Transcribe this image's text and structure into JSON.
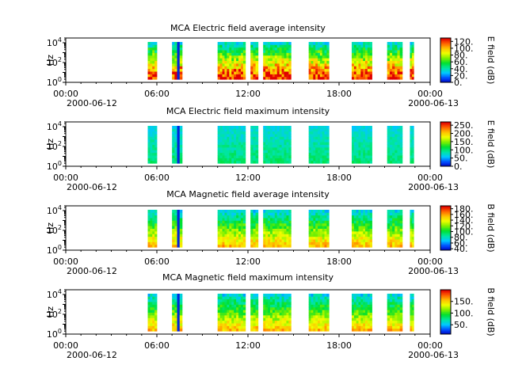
{
  "chart_data": [
    {
      "type": "heatmap",
      "title": "MCA  Electric field average intensity",
      "ylabel": "Hz",
      "y_scale": "log",
      "ylim": [
        1,
        30000
      ],
      "y_ticks": [
        {
          "value": 1,
          "base": "10",
          "exp": "0"
        },
        {
          "value": 100,
          "base": "10",
          "exp": "2"
        },
        {
          "value": 10000,
          "base": "10",
          "exp": "4"
        }
      ],
      "x_range": [
        "2000-06-12 00:00",
        "2000-06-13 00:00"
      ],
      "x_ticks": [
        "00:00",
        "06:00",
        "12:00",
        "18:00",
        "00:00"
      ],
      "x_dates": {
        "first": "2000-06-12",
        "last": "2000-06-13"
      },
      "colorbar": {
        "label": "E field (dB)",
        "min": 0,
        "max": 130,
        "ticks": [
          "0.",
          "20.",
          "40.",
          "60.",
          "80.",
          "100.",
          "120."
        ],
        "tick_values": [
          0,
          20,
          40,
          60,
          80,
          100,
          120
        ]
      },
      "hot_bias": 0.35
    },
    {
      "type": "heatmap",
      "title": "MCA  Electric field maximum intensity",
      "ylabel": "Hz",
      "y_scale": "log",
      "ylim": [
        1,
        30000
      ],
      "y_ticks": [
        {
          "value": 1,
          "base": "10",
          "exp": "0"
        },
        {
          "value": 100,
          "base": "10",
          "exp": "2"
        },
        {
          "value": 10000,
          "base": "10",
          "exp": "4"
        }
      ],
      "x_range": [
        "2000-06-12 00:00",
        "2000-06-13 00:00"
      ],
      "x_ticks": [
        "00:00",
        "06:00",
        "12:00",
        "18:00",
        "00:00"
      ],
      "x_dates": {
        "first": "2000-06-12",
        "last": "2000-06-13"
      },
      "colorbar": {
        "label": "E field (dB)",
        "min": 0,
        "max": 270,
        "ticks": [
          "0.",
          "50.",
          "100.",
          "150.",
          "200.",
          "250."
        ],
        "tick_values": [
          0,
          50,
          100,
          150,
          200,
          250
        ]
      },
      "hot_bias": 0.0
    },
    {
      "type": "heatmap",
      "title": "MCA  Magnetic field average intensity",
      "ylabel": "Hz",
      "y_scale": "log",
      "ylim": [
        1,
        30000
      ],
      "y_ticks": [
        {
          "value": 1,
          "base": "10",
          "exp": "0"
        },
        {
          "value": 100,
          "base": "10",
          "exp": "2"
        },
        {
          "value": 10000,
          "base": "10",
          "exp": "4"
        }
      ],
      "x_range": [
        "2000-06-12 00:00",
        "2000-06-13 00:00"
      ],
      "x_ticks": [
        "00:00",
        "06:00",
        "12:00",
        "18:00",
        "00:00"
      ],
      "x_dates": {
        "first": "2000-06-12",
        "last": "2000-06-13"
      },
      "colorbar": {
        "label": "B field (dB)",
        "min": 35,
        "max": 190,
        "ticks": [
          "40.",
          "60.",
          "80.",
          "100.",
          "120.",
          "140.",
          "160.",
          "180."
        ],
        "tick_values": [
          40,
          60,
          80,
          100,
          120,
          140,
          160,
          180
        ]
      },
      "hot_bias": 0.15
    },
    {
      "type": "heatmap",
      "title": "MCA  Magnetic field maximum intensity",
      "ylabel": "Hz",
      "y_scale": "log",
      "ylim": [
        1,
        30000
      ],
      "y_ticks": [
        {
          "value": 1,
          "base": "10",
          "exp": "0"
        },
        {
          "value": 100,
          "base": "10",
          "exp": "2"
        },
        {
          "value": 10000,
          "base": "10",
          "exp": "4"
        }
      ],
      "x_range": [
        "2000-06-12 00:00",
        "2000-06-13 00:00"
      ],
      "x_ticks": [
        "00:00",
        "06:00",
        "12:00",
        "18:00",
        "00:00"
      ],
      "x_dates": {
        "first": "2000-06-12",
        "last": "2000-06-13"
      },
      "colorbar": {
        "label": "B field (dB)",
        "min": 10,
        "max": 200,
        "ticks": [
          "50.",
          "100.",
          "150."
        ],
        "tick_values": [
          50,
          100,
          150
        ]
      },
      "hot_bias": 0.15
    }
  ],
  "data_intervals": [
    [
      "05:24",
      "06:00"
    ],
    [
      "07:00",
      "07:40"
    ],
    [
      "10:00",
      "11:50"
    ],
    [
      "12:10",
      "12:40"
    ],
    [
      "13:00",
      "14:50"
    ],
    [
      "16:00",
      "17:20"
    ],
    [
      "18:50",
      "20:10"
    ],
    [
      "21:10",
      "22:10"
    ],
    [
      "22:40",
      "22:55"
    ]
  ],
  "colors": {
    "axis": "#000000",
    "background": "#ffffff",
    "colormap": [
      "#0000c0",
      "#0050ff",
      "#00c8ff",
      "#00e6a0",
      "#00e030",
      "#7ef000",
      "#f0ff00",
      "#ffc000",
      "#ff6000",
      "#e00000"
    ]
  }
}
